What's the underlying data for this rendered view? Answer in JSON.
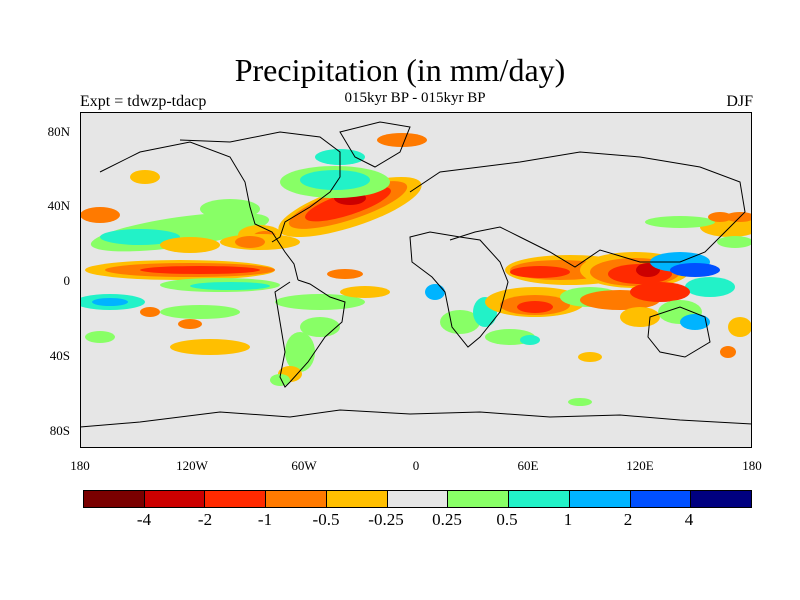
{
  "header": {
    "title": "Precipitation (in mm/day)",
    "subtitle": "015kyr BP - 015kyr BP",
    "left_label": "Expt = tdwzp-tdacp",
    "right_label": "DJF"
  },
  "axes": {
    "y_ticks": [
      "80N",
      "40N",
      "0",
      "40S",
      "80S"
    ],
    "x_ticks": [
      "180",
      "120W",
      "60W",
      "0",
      "60E",
      "120E",
      "180"
    ]
  },
  "colorbar": {
    "colors": [
      "#7a0000",
      "#cc0000",
      "#ff2a00",
      "#ff7a00",
      "#ffbf00",
      "#e6e6e6",
      "#88ff66",
      "#22f2c8",
      "#00b4ff",
      "#0050ff",
      "#000080"
    ],
    "labels": [
      "-4",
      "-2",
      "-1",
      "-0.5",
      "-0.25",
      "0.25",
      "0.5",
      "1",
      "2",
      "4"
    ]
  },
  "map": {
    "background": "#e6e6e6",
    "palette": {
      "dark_red": "#cc0000",
      "red": "#ff2a00",
      "orange": "#ff7a00",
      "yellow": "#ffbf00",
      "green": "#88ff66",
      "cyan": "#22f2c8",
      "lightblue": "#00b4ff",
      "blue": "#0050ff"
    }
  }
}
